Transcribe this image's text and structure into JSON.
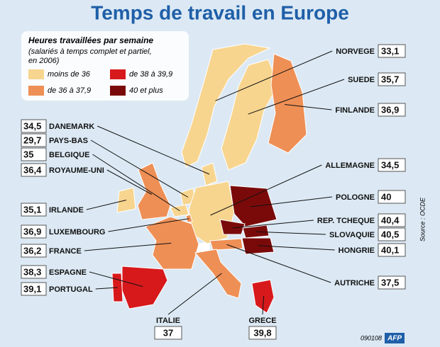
{
  "title": "Temps de travail en Europe",
  "legend": {
    "heading": "Heures travaillées par semaine",
    "subheading": [
      "(salariés à temps complet et partiel,",
      "en 2006)"
    ],
    "items": [
      {
        "label": "moins de 36",
        "color": "#f7d58f"
      },
      {
        "label": "de 36 à 37,9",
        "color": "#ee8f55"
      },
      {
        "label": "de 38 à 39,9",
        "color": "#d7191c"
      },
      {
        "label": "40 et plus",
        "color": "#7a0a0a"
      }
    ]
  },
  "countries": [
    {
      "name": "NORVEGE",
      "value": "33,1",
      "color": "#f7d58f"
    },
    {
      "name": "SUEDE",
      "value": "35,7",
      "color": "#f7d58f"
    },
    {
      "name": "FINLANDE",
      "value": "36,9",
      "color": "#ee8f55"
    },
    {
      "name": "DANEMARK",
      "value": "34,5",
      "color": "#f7d58f"
    },
    {
      "name": "PAYS-BAS",
      "value": "29,7",
      "color": "#f7d58f"
    },
    {
      "name": "BELGIQUE",
      "value": "35",
      "color": "#f7d58f"
    },
    {
      "name": "ROYAUME-UNI",
      "value": "36,4",
      "color": "#ee8f55"
    },
    {
      "name": "ALLEMAGNE",
      "value": "34,5",
      "color": "#f7d58f"
    },
    {
      "name": "POLOGNE",
      "value": "40",
      "color": "#7a0a0a"
    },
    {
      "name": "IRLANDE",
      "value": "35,1",
      "color": "#f7d58f"
    },
    {
      "name": "REP. TCHEQUE",
      "value": "40,4",
      "color": "#7a0a0a"
    },
    {
      "name": "SLOVAQUIE",
      "value": "40,5",
      "color": "#7a0a0a"
    },
    {
      "name": "LUXEMBOURG",
      "value": "36,9",
      "color": "#ee8f55"
    },
    {
      "name": "HONGRIE",
      "value": "40,1",
      "color": "#7a0a0a"
    },
    {
      "name": "FRANCE",
      "value": "36,2",
      "color": "#ee8f55"
    },
    {
      "name": "ESPAGNE",
      "value": "38,3",
      "color": "#d7191c"
    },
    {
      "name": "AUTRICHE",
      "value": "37,5",
      "color": "#ee8f55"
    },
    {
      "name": "PORTUGAL",
      "value": "39,1",
      "color": "#d7191c"
    },
    {
      "name": "ITALIE",
      "value": "37",
      "color": "#ee8f55"
    },
    {
      "name": "GRECE",
      "value": "39,8",
      "color": "#d7191c"
    }
  ],
  "source": "Source : OCDE",
  "footer_code": "090108",
  "agency": "AFP"
}
